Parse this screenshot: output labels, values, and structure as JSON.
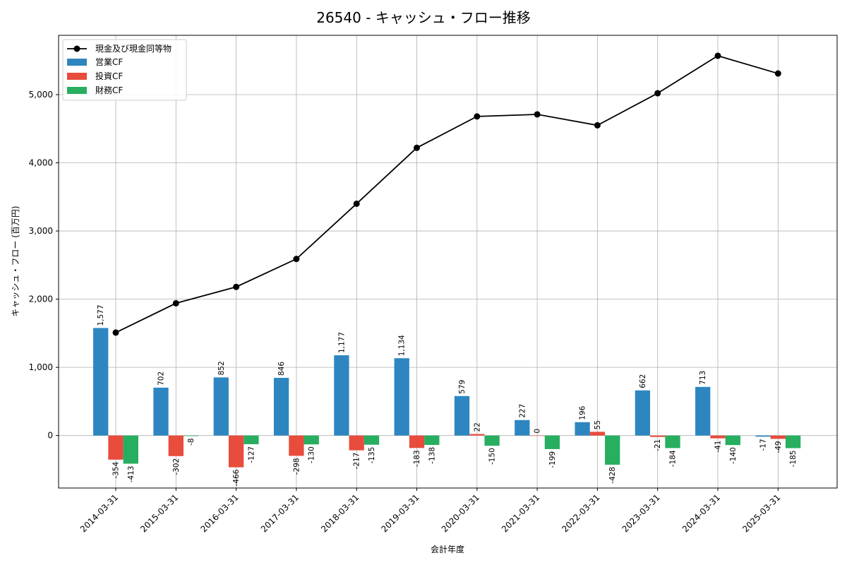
{
  "chart_data": {
    "type": "bar",
    "title": "26540 - キャッシュ・フロー推移",
    "xlabel": "会計年度",
    "ylabel": "キャッシュ・フロー (百万円)",
    "categories": [
      "2014-03-31",
      "2015-03-31",
      "2016-03-31",
      "2017-03-31",
      "2018-03-31",
      "2019-03-31",
      "2020-03-31",
      "2021-03-31",
      "2022-03-31",
      "2023-03-31",
      "2024-03-31",
      "2025-03-31"
    ],
    "series": [
      {
        "name": "営業CF",
        "color": "#2e86c1",
        "values": [
          1577,
          702,
          852,
          846,
          1177,
          1134,
          579,
          227,
          196,
          662,
          713,
          -17
        ]
      },
      {
        "name": "投資CF",
        "color": "#e74c3c",
        "values": [
          -354,
          -302,
          -466,
          -298,
          -217,
          -183,
          22,
          0,
          55,
          -21,
          -41,
          -49
        ]
      },
      {
        "name": "財務CF",
        "color": "#27ae60",
        "values": [
          -413,
          -8,
          -127,
          -130,
          -135,
          -138,
          -150,
          -199,
          -428,
          -184,
          -140,
          -185
        ]
      }
    ],
    "line_series": {
      "name": "現金及び現金同等物",
      "color": "#000000",
      "values": [
        1510,
        1940,
        2180,
        2590,
        3400,
        4220,
        4680,
        4710,
        4550,
        5020,
        5570,
        5310
      ]
    },
    "ylim": [
      -770,
      5870
    ],
    "yticks": [
      0,
      1000,
      2000,
      3000,
      4000,
      5000
    ],
    "ytick_labels": [
      "0",
      "1,000",
      "2,000",
      "3,000",
      "4,000",
      "5,000"
    ],
    "grid": true,
    "legend_position": "top-left"
  }
}
